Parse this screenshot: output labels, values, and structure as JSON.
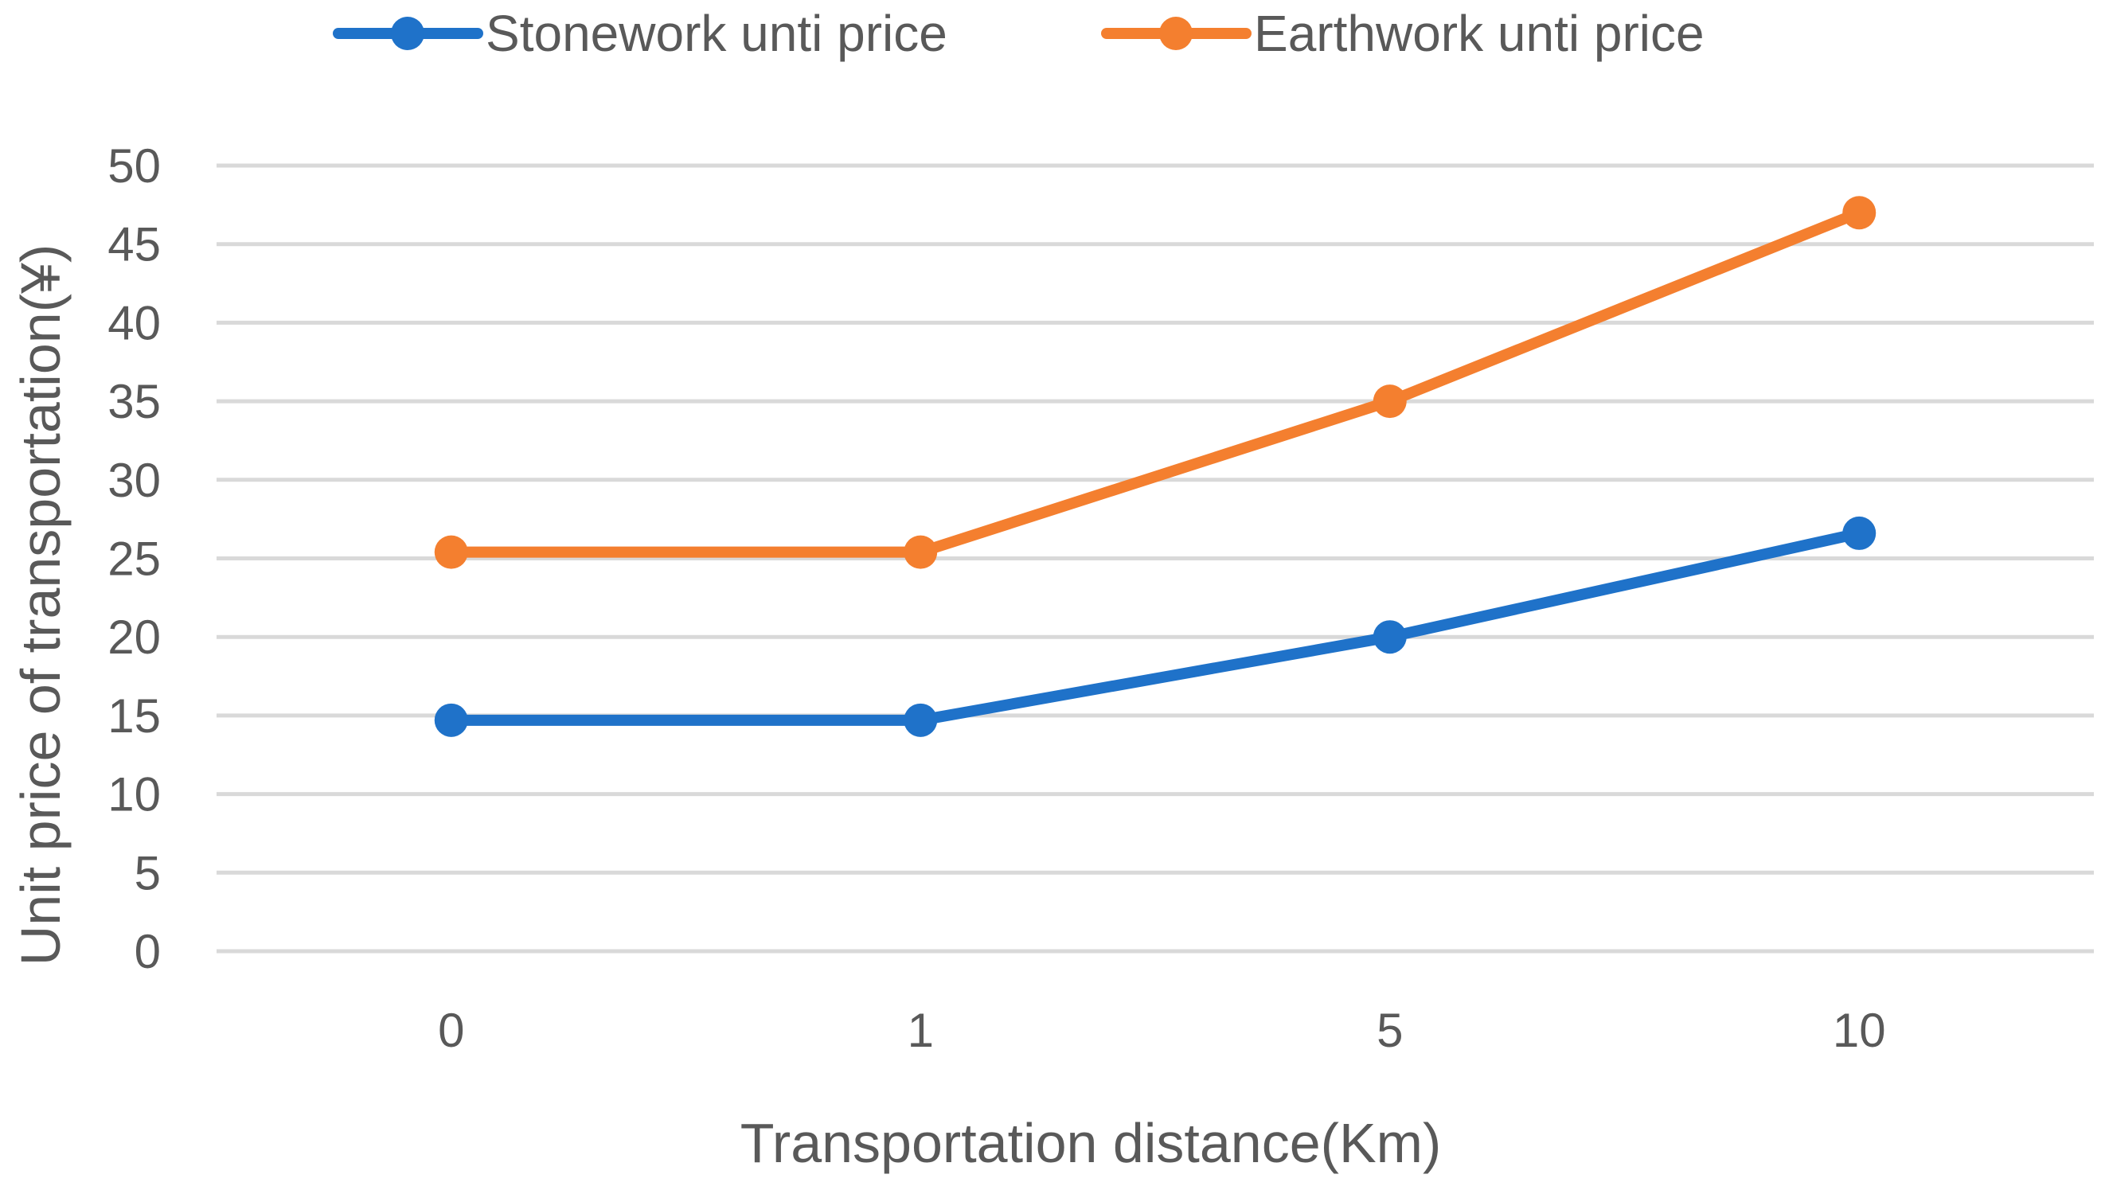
{
  "chart_data": {
    "type": "line",
    "title": "",
    "xlabel": "Transportation distance(Km)",
    "ylabel": "Unit price of transportation(¥)",
    "categories": [
      "0",
      "1",
      "5",
      "10"
    ],
    "ylim": [
      0,
      50
    ],
    "y_ticks": [
      "0",
      "5",
      "10",
      "15",
      "20",
      "25",
      "30",
      "35",
      "40",
      "45",
      "50"
    ],
    "grid": "horizontal",
    "legend_position": "top",
    "series": [
      {
        "name": "Stonework unti price",
        "color": "#1f72c9",
        "values": [
          14.7,
          14.7,
          20,
          26.6
        ]
      },
      {
        "name": "Earthwork unti price",
        "color": "#f47f2f",
        "values": [
          25.4,
          25.4,
          35,
          47
        ]
      }
    ]
  }
}
